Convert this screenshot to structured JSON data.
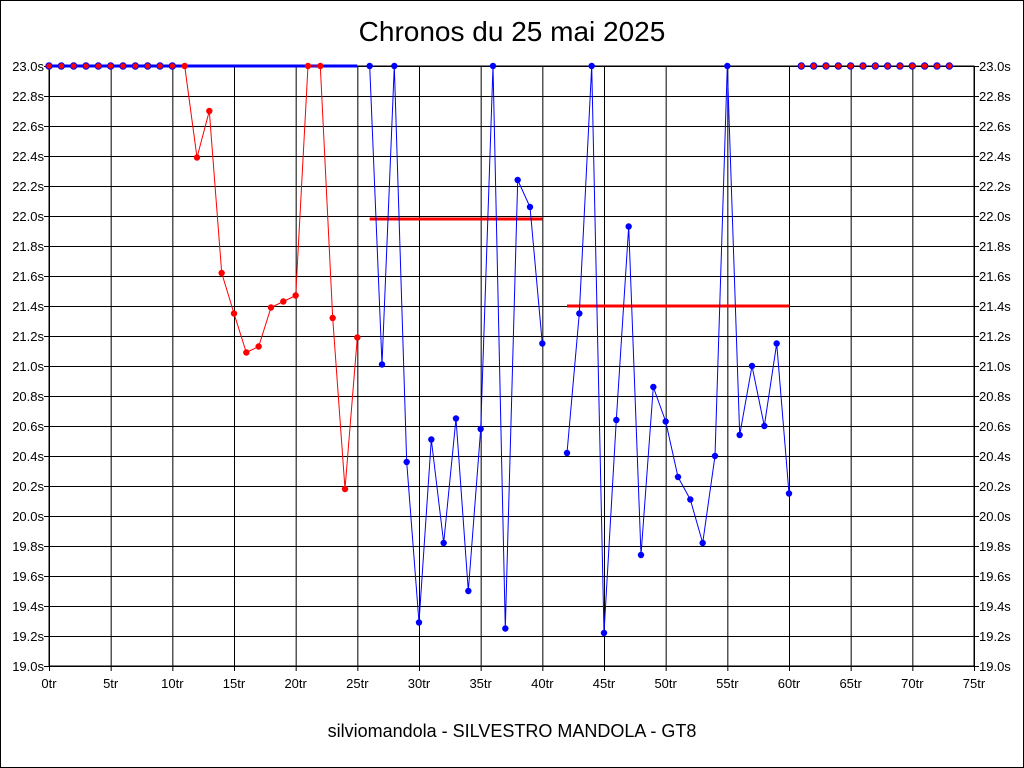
{
  "chart_data": {
    "type": "line",
    "title": "Chronos du 25 mai 2025",
    "footer": "silviomandola - SILVESTRO MANDOLA - GT8",
    "xlim": [
      0,
      75
    ],
    "ylim": [
      19.0,
      23.0
    ],
    "grid": true,
    "x_ticks": [
      0,
      5,
      10,
      15,
      20,
      25,
      30,
      35,
      40,
      45,
      50,
      55,
      60,
      65,
      70,
      75
    ],
    "x_tick_labels": [
      "0tr",
      "5tr",
      "10tr",
      "15tr",
      "20tr",
      "25tr",
      "30tr",
      "35tr",
      "40tr",
      "45tr",
      "50tr",
      "55tr",
      "60tr",
      "65tr",
      "70tr",
      "75tr"
    ],
    "y_ticks": [
      19.0,
      19.2,
      19.4,
      19.6,
      19.8,
      20.0,
      20.2,
      20.4,
      20.6,
      20.8,
      21.0,
      21.2,
      21.4,
      21.6,
      21.8,
      22.0,
      22.2,
      22.4,
      22.6,
      22.8,
      23.0
    ],
    "y_tick_labels": [
      "19.0s",
      "19.2s",
      "19.4s",
      "19.6s",
      "19.8s",
      "20.0s",
      "20.2s",
      "20.4s",
      "20.6s",
      "20.8s",
      "21.0s",
      "21.2s",
      "21.4s",
      "21.6s",
      "21.8s",
      "22.0s",
      "22.2s",
      "22.4s",
      "22.6s",
      "22.8s",
      "23.0s"
    ],
    "colors": {
      "red": "#ff0000",
      "blue": "#0000ff",
      "grid": "#000000"
    },
    "series": [
      {
        "color": "red",
        "x": [
          11,
          12,
          13,
          14,
          15,
          16,
          17,
          18,
          19,
          20,
          21,
          22,
          23,
          24,
          25
        ],
        "y": [
          23.0,
          22.39,
          22.7,
          21.62,
          21.35,
          21.09,
          21.13,
          21.39,
          21.43,
          21.47,
          23.0,
          23.0,
          21.32,
          20.18,
          21.19
        ]
      },
      {
        "color": "blue",
        "x": [
          26,
          27,
          28,
          29,
          30,
          31,
          32,
          33,
          34,
          35,
          36,
          37,
          38,
          39,
          40
        ],
        "y": [
          23.0,
          21.01,
          23.0,
          20.36,
          19.29,
          20.51,
          19.82,
          20.65,
          19.5,
          20.58,
          23.0,
          19.25,
          22.24,
          22.06,
          21.15
        ]
      },
      {
        "color": "blue",
        "x": [
          42,
          43,
          44,
          45,
          46,
          47,
          48,
          49,
          50,
          51,
          52,
          53,
          54,
          55,
          56,
          57,
          58,
          59,
          60
        ],
        "y": [
          20.42,
          21.35,
          23.0,
          19.22,
          20.64,
          21.93,
          19.74,
          20.86,
          20.63,
          20.26,
          20.11,
          19.82,
          20.4,
          23.0,
          20.54,
          21.0,
          20.6,
          21.15,
          20.15
        ]
      },
      {
        "color": "red",
        "markers": "blue-outlined",
        "x": [
          0,
          1,
          2,
          3,
          4,
          5,
          6,
          7,
          8,
          9,
          10
        ],
        "y": [
          23.0,
          23.0,
          23.0,
          23.0,
          23.0,
          23.0,
          23.0,
          23.0,
          23.0,
          23.0,
          23.0
        ]
      },
      {
        "color": "red",
        "markers": "blue-outlined",
        "x": [
          61,
          62,
          63,
          64,
          65,
          66,
          67,
          68,
          69,
          70,
          71,
          72,
          73
        ],
        "y": [
          23.0,
          23.0,
          23.0,
          23.0,
          23.0,
          23.0,
          23.0,
          23.0,
          23.0,
          23.0,
          23.0,
          23.0,
          23.0
        ]
      }
    ],
    "average_lines": [
      {
        "color": "blue",
        "x": [
          0,
          25
        ],
        "y": 23.0
      },
      {
        "color": "red",
        "x": [
          26,
          40
        ],
        "y": 21.98
      },
      {
        "color": "red",
        "x": [
          42,
          60
        ],
        "y": 21.4
      }
    ]
  }
}
